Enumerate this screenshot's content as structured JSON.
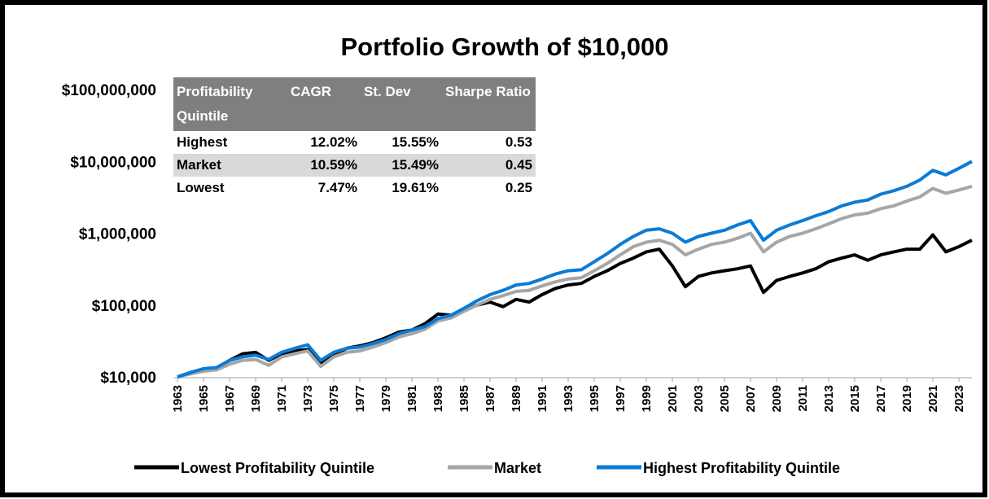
{
  "chart_data": {
    "type": "line",
    "title": "Portfolio Growth of $10,000",
    "log_scale": true,
    "x": [
      1963,
      1964,
      1965,
      1966,
      1967,
      1968,
      1969,
      1970,
      1971,
      1972,
      1973,
      1974,
      1975,
      1976,
      1977,
      1978,
      1979,
      1980,
      1981,
      1982,
      1983,
      1984,
      1985,
      1986,
      1987,
      1988,
      1989,
      1990,
      1991,
      1992,
      1993,
      1994,
      1995,
      1996,
      1997,
      1998,
      1999,
      2000,
      2001,
      2002,
      2003,
      2004,
      2005,
      2006,
      2007,
      2008,
      2009,
      2010,
      2011,
      2012,
      2013,
      2014,
      2015,
      2016,
      2017,
      2018,
      2019,
      2020,
      2021,
      2022,
      2023,
      2024
    ],
    "xlim": [
      1963,
      2024
    ],
    "xticks": [
      1963,
      1965,
      1967,
      1969,
      1971,
      1973,
      1975,
      1977,
      1979,
      1981,
      1983,
      1985,
      1987,
      1989,
      1991,
      1993,
      1995,
      1997,
      1999,
      2001,
      2003,
      2005,
      2007,
      2009,
      2011,
      2013,
      2015,
      2017,
      2019,
      2021,
      2023
    ],
    "ylim": [
      10000,
      100000000
    ],
    "yticks": [
      {
        "value": 10000,
        "label": "$10,000"
      },
      {
        "value": 100000,
        "label": "$100,000"
      },
      {
        "value": 1000000,
        "label": "$1,000,000"
      },
      {
        "value": 10000000,
        "label": "$10,000,000"
      },
      {
        "value": 100000000,
        "label": "$100,000,000"
      }
    ],
    "legend": "bottom",
    "series": [
      {
        "name": "Lowest Profitability Quintile",
        "color": "#000000",
        "values": [
          10000,
          11500,
          12500,
          13000,
          17000,
          21000,
          22000,
          17000,
          21000,
          23000,
          24000,
          15000,
          20000,
          25000,
          27000,
          30000,
          35000,
          42000,
          45000,
          55000,
          75000,
          72000,
          85000,
          100000,
          110000,
          95000,
          120000,
          110000,
          140000,
          170000,
          190000,
          200000,
          250000,
          300000,
          380000,
          450000,
          550000,
          600000,
          350000,
          180000,
          250000,
          280000,
          300000,
          320000,
          350000,
          150000,
          220000,
          250000,
          280000,
          320000,
          400000,
          450000,
          500000,
          420000,
          500000,
          550000,
          600000,
          600000,
          950000,
          550000,
          650000,
          800000
        ]
      },
      {
        "name": "Market",
        "color": "#a6a6a6",
        "values": [
          10000,
          11000,
          12000,
          12500,
          15000,
          17000,
          17500,
          14500,
          19000,
          21000,
          23000,
          14000,
          19000,
          22000,
          23000,
          26000,
          30000,
          36000,
          40000,
          46000,
          60000,
          66000,
          82000,
          100000,
          120000,
          135000,
          155000,
          160000,
          185000,
          210000,
          230000,
          240000,
          300000,
          380000,
          500000,
          650000,
          750000,
          800000,
          700000,
          500000,
          600000,
          700000,
          750000,
          850000,
          1000000,
          550000,
          750000,
          900000,
          1000000,
          1150000,
          1350000,
          1600000,
          1800000,
          1900000,
          2200000,
          2400000,
          2800000,
          3200000,
          4200000,
          3600000,
          4000000,
          4500000
        ]
      },
      {
        "name": "Highest Profitability Quintile",
        "color": "#0a7bd6",
        "values": [
          10000,
          11500,
          13000,
          13500,
          17000,
          19000,
          20000,
          17500,
          22000,
          25000,
          28000,
          17000,
          22000,
          25000,
          26000,
          29000,
          33000,
          40000,
          45000,
          50000,
          65000,
          72000,
          90000,
          115000,
          140000,
          160000,
          190000,
          200000,
          230000,
          270000,
          300000,
          310000,
          400000,
          520000,
          700000,
          900000,
          1100000,
          1150000,
          1000000,
          750000,
          900000,
          1000000,
          1100000,
          1300000,
          1500000,
          800000,
          1100000,
          1300000,
          1500000,
          1750000,
          2000000,
          2400000,
          2700000,
          2900000,
          3500000,
          3900000,
          4500000,
          5500000,
          7500000,
          6500000,
          8000000,
          10000000
        ]
      }
    ],
    "table": {
      "header": [
        "Profitability Quintile",
        "CAGR",
        "St. Dev",
        "Sharpe Ratio"
      ],
      "rows": [
        [
          "Highest",
          "12.02%",
          "15.55%",
          "0.53"
        ],
        [
          "Market",
          "10.59%",
          "15.49%",
          "0.45"
        ],
        [
          "Lowest",
          "7.47%",
          "19.61%",
          "0.25"
        ]
      ]
    }
  }
}
